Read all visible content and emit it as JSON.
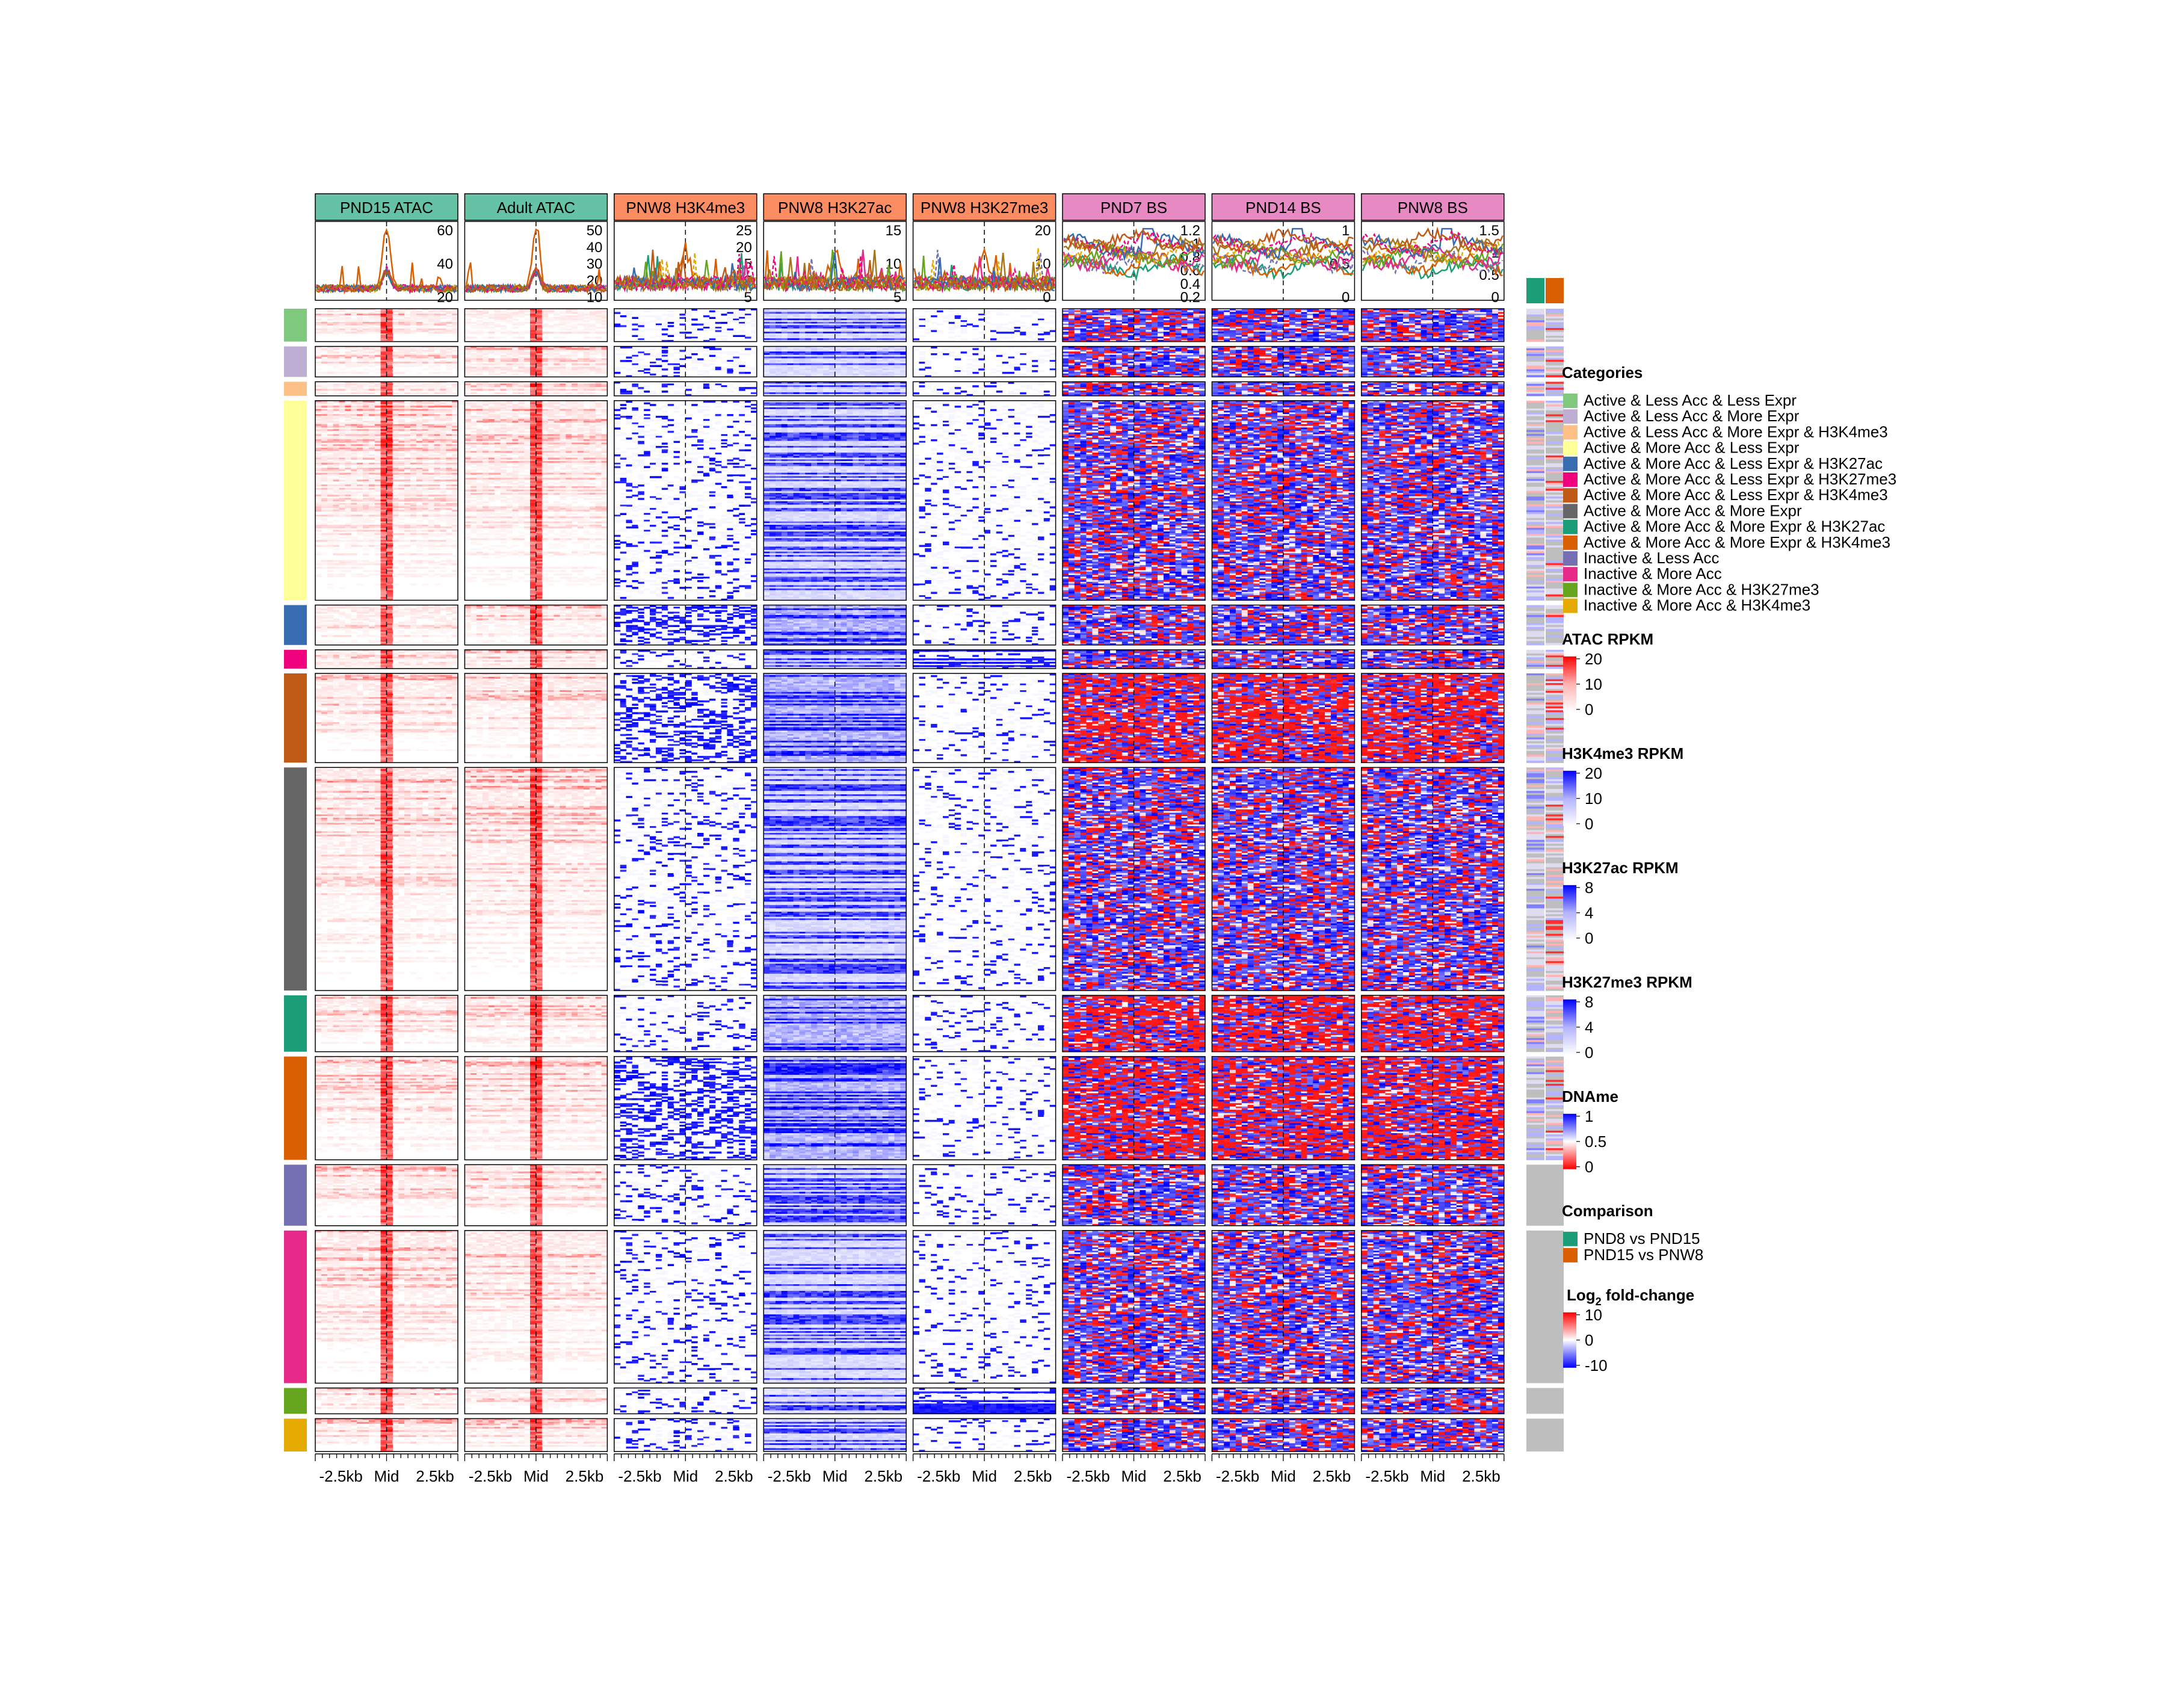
{
  "columns": [
    {
      "title": "PND15 ATAC",
      "color": "#66c2a5",
      "type": "atac",
      "yticks": [
        "60",
        "40",
        "20"
      ],
      "peak": 60
    },
    {
      "title": "Adult ATAC",
      "color": "#66c2a5",
      "type": "atac",
      "yticks": [
        "50",
        "40",
        "30",
        "20",
        "10"
      ],
      "peak": 50
    },
    {
      "title": "PNW8 H3K4me3",
      "color": "#fc8d62",
      "type": "k4",
      "yticks": [
        "25",
        "20",
        "15",
        "10",
        "5"
      ],
      "peak": 25
    },
    {
      "title": "PNW8 H3K27ac",
      "color": "#fc8d62",
      "type": "k27ac",
      "yticks": [
        "15",
        "10",
        "5"
      ],
      "peak": 15
    },
    {
      "title": "PNW8 H3K27me3",
      "color": "#fc8d62",
      "type": "k27me3",
      "yticks": [
        "20",
        "10",
        "0"
      ],
      "peak": 20
    },
    {
      "title": "PND7 BS",
      "color": "#e78ac3",
      "type": "bs",
      "yticks": [
        "1.2",
        "1",
        "0.8",
        "0.6",
        "0.4",
        "0.2"
      ],
      "peak": 1.2
    },
    {
      "title": "PND14 BS",
      "color": "#e78ac3",
      "type": "bs",
      "yticks": [
        "1",
        "0.5",
        "0"
      ],
      "peak": 1
    },
    {
      "title": "PNW8 BS",
      "color": "#e78ac3",
      "type": "bs",
      "yticks": [
        "1.5",
        "1",
        "0.5",
        "0"
      ],
      "peak": 1.5
    }
  ],
  "x_axis_labels": [
    "-2.5kb",
    "Mid",
    "2.5kb"
  ],
  "categories": [
    {
      "name": "Active & Less Acc & Less Expr",
      "color": "#7fc97f",
      "rows": 14
    },
    {
      "name": "Active & Less Acc & More Expr",
      "color": "#beaed4",
      "rows": 13
    },
    {
      "name": "Active & Less Acc & More Expr & H3K4me3",
      "color": "#fdc086",
      "rows": 6
    },
    {
      "name": "Active & More Acc & Less Expr",
      "color": "#ffff99",
      "rows": 85
    },
    {
      "name": "Active & More Acc & Less Expr & H3K27ac",
      "color": "#386cb0",
      "rows": 17
    },
    {
      "name": "Active & More Acc & Less Expr & H3K27me3",
      "color": "#f0027f",
      "rows": 8
    },
    {
      "name": "Active & More Acc & Less Expr & H3K4me3",
      "color": "#bf5b17",
      "rows": 38
    },
    {
      "name": "Active & More Acc & More Expr",
      "color": "#666666",
      "rows": 95
    },
    {
      "name": "Active & More Acc & More Expr & H3K27ac",
      "color": "#1b9e77",
      "rows": 24
    },
    {
      "name": "Active & More Acc & More Expr & H3K4me3",
      "color": "#d95f02",
      "rows": 44
    },
    {
      "name": "Inactive & Less Acc",
      "color": "#7570b3",
      "rows": 26
    },
    {
      "name": "Inactive & More Acc",
      "color": "#e7298a",
      "rows": 65
    },
    {
      "name": "Inactive & More Acc & H3K27me3",
      "color": "#66a61e",
      "rows": 11
    },
    {
      "name": "Inactive & More Acc & H3K4me3",
      "color": "#e6ab02",
      "rows": 14
    }
  ],
  "comparison": {
    "title": "Comparison",
    "items": [
      {
        "name": "PND8 vs PND15",
        "color": "#1b9e77"
      },
      {
        "name": "PND15 vs PNW8",
        "color": "#d95f02"
      }
    ]
  },
  "legends": {
    "categories_title": "Categories",
    "scales": [
      {
        "title": "ATAC RPKM",
        "ticks": [
          "20",
          "10",
          "0"
        ],
        "top": "#ff0000",
        "mid": "#ffb3b3",
        "bottom": "#ffffff"
      },
      {
        "title": "H3K4me3 RPKM",
        "ticks": [
          "20",
          "10",
          "0"
        ],
        "top": "#0000ff",
        "mid": "#b3b3ff",
        "bottom": "#ffffff"
      },
      {
        "title": "H3K27ac RPKM",
        "ticks": [
          "8",
          "4",
          "0"
        ],
        "top": "#0000ff",
        "mid": "#b3b3ff",
        "bottom": "#ffffff"
      },
      {
        "title": "H3K27me3 RPKM",
        "ticks": [
          "8",
          "4",
          "0"
        ],
        "top": "#0000ff",
        "mid": "#b3b3ff",
        "bottom": "#ffffff"
      },
      {
        "title": "DNAme",
        "ticks": [
          "1",
          "0.5",
          "0"
        ],
        "top": "#0000ff",
        "mid": "#ffffff",
        "bottom": "#ff0000"
      }
    ],
    "fold_change": {
      "title_prefix": "Log",
      "title_sub": "2",
      "title_suffix": " fold-change",
      "ticks": [
        "10",
        "0",
        "-10"
      ],
      "top": "#ff0000",
      "mid": "#ffffff",
      "bottom": "#0000ff"
    }
  },
  "chart_data": {
    "type": "heatmap",
    "description_series": [
      "PND15 ATAC",
      "Adult ATAC",
      "PNW8 H3K4me3",
      "PNW8 H3K27ac",
      "PNW8 H3K27me3",
      "PND7 BS",
      "PND14 BS",
      "PNW8 BS"
    ],
    "x": [
      "-2.5kb",
      "Mid",
      "2.5kb"
    ],
    "profile_line_colors": [
      "#1b9e77",
      "#d95f02",
      "#7570b3",
      "#e7298a",
      "#66a61e",
      "#e6ab02",
      "#a6761d",
      "#386cb0",
      "#f0027f",
      "#bf5b17"
    ]
  }
}
